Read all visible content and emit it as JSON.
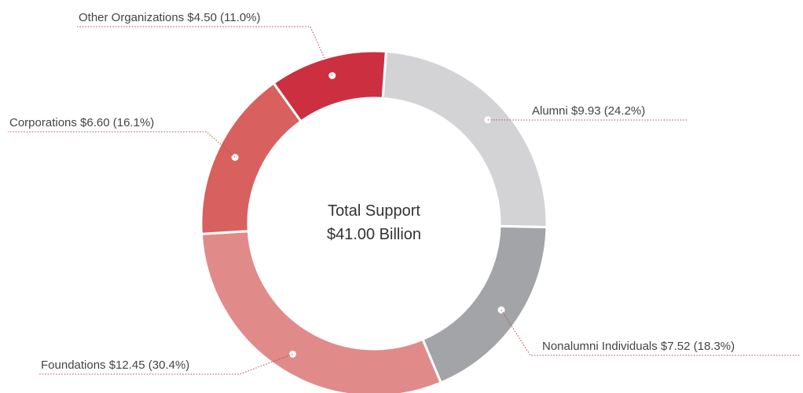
{
  "chart_data": {
    "type": "pie",
    "variant": "donut",
    "unit": "Billion",
    "total": 41.0,
    "center_label": {
      "line1": "Total Support",
      "line2": "$41.00 Billion"
    },
    "slices": [
      {
        "name": "Alumni",
        "value": 9.93,
        "percent": 24.2,
        "label": "Alumni $9.93 (24.2%)",
        "color": "#d3d3d5"
      },
      {
        "name": "Nonalumni Individuals",
        "value": 7.52,
        "percent": 18.3,
        "label": "Nonalumni Individuals $7.52 (18.3%)",
        "color": "#a3a4a7"
      },
      {
        "name": "Foundations",
        "value": 12.45,
        "percent": 30.4,
        "label": "Foundations $12.45 (30.4%)",
        "color": "#e18a8a"
      },
      {
        "name": "Corporations",
        "value": 6.6,
        "percent": 16.1,
        "label": "Corporations $6.60 (16.1%)",
        "color": "#d8605f"
      },
      {
        "name": "Other Organizations",
        "value": 4.5,
        "percent": 11.0,
        "label": "Other Organizations $4.50 (11.0%)",
        "color": "#cc2f40"
      }
    ],
    "legend": "none"
  }
}
